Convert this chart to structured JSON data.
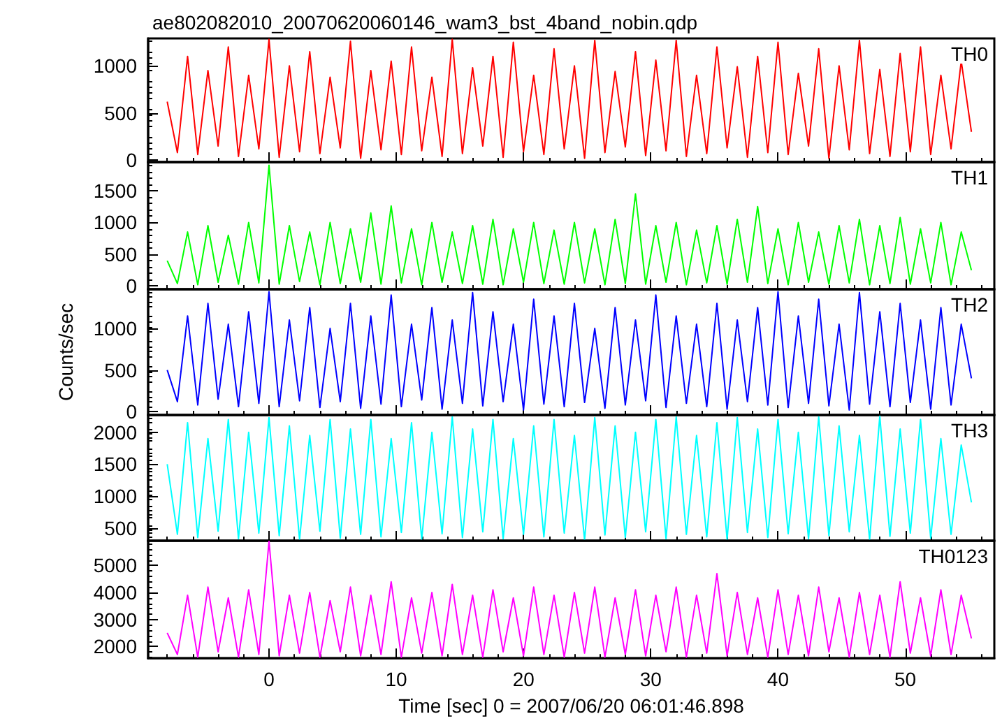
{
  "chart_data": [
    {
      "type": "line",
      "title": "ae802082010_20070620060146_wam3_bst_4band_nobin.qdp",
      "annotations": [
        "TH0"
      ],
      "tick_labels": "y",
      "marker": "none",
      "x": [
        -8,
        -7.2,
        -6.4,
        -5.6,
        -4.8,
        -4,
        -3.2,
        -2.4,
        -1.6,
        -0.8,
        0,
        0.8,
        1.6,
        2.4,
        3.2,
        4,
        4.8,
        5.6,
        6.4,
        7.2,
        8,
        8.8,
        9.6,
        10.4,
        11.2,
        12,
        12.8,
        13.6,
        14.4,
        15.2,
        16,
        16.8,
        17.6,
        18.4,
        19.2,
        20,
        20.8,
        21.6,
        22.4,
        23.2,
        24,
        24.8,
        25.6,
        26.4,
        27.2,
        28,
        28.8,
        29.6,
        30.4,
        31.2,
        32,
        32.8,
        33.6,
        34.4,
        35.2,
        36,
        36.8,
        37.6,
        38.4,
        39.2,
        40,
        40.8,
        41.6,
        42.4,
        43.2,
        44,
        44.8,
        45.6,
        46.4,
        47.2,
        48,
        48.8,
        49.6,
        50.4,
        51.2,
        52,
        52.8,
        53.6,
        54.4,
        55.2
      ],
      "xlim": [
        -9.5,
        57
      ],
      "xticks": [
        0,
        10,
        20,
        30,
        40,
        50
      ],
      "ylim": [
        -20,
        1290
      ],
      "yticks": [
        0,
        500,
        1000
      ],
      "series": [
        {
          "color": "#ff0000",
          "values": [
            620,
            80,
            1100,
            60,
            950,
            150,
            1200,
            40,
            900,
            120,
            1280,
            30,
            1000,
            90,
            1150,
            70,
            880,
            130,
            1260,
            20,
            950,
            110,
            1050,
            60,
            1200,
            100,
            880,
            40,
            1280,
            70,
            980,
            150,
            1100,
            30,
            1250,
            90,
            900,
            60,
            1180,
            120,
            1000,
            20,
            1270,
            80,
            940,
            140,
            1150,
            50,
            1060,
            100,
            1270,
            40,
            900,
            70,
            1200,
            130,
            990,
            30,
            1100,
            80,
            1250,
            60,
            920,
            150,
            1180,
            20,
            1000,
            110,
            1270,
            70,
            960,
            40,
            1130,
            90,
            1200,
            60,
            900,
            120,
            1050,
            300
          ]
        }
      ]
    },
    {
      "type": "line",
      "annotations": [
        "TH1"
      ],
      "tick_labels": "y",
      "marker": "none",
      "x": [
        -8,
        -7.2,
        -6.4,
        -5.6,
        -4.8,
        -4,
        -3.2,
        -2.4,
        -1.6,
        -0.8,
        0,
        0.8,
        1.6,
        2.4,
        3.2,
        4,
        4.8,
        5.6,
        6.4,
        7.2,
        8,
        8.8,
        9.6,
        10.4,
        11.2,
        12,
        12.8,
        13.6,
        14.4,
        15.2,
        16,
        16.8,
        17.6,
        18.4,
        19.2,
        20,
        20.8,
        21.6,
        22.4,
        23.2,
        24,
        24.8,
        25.6,
        26.4,
        27.2,
        28,
        28.8,
        29.6,
        30.4,
        31.2,
        32,
        32.8,
        33.6,
        34.4,
        35.2,
        36,
        36.8,
        37.6,
        38.4,
        39.2,
        40,
        40.8,
        41.6,
        42.4,
        43.2,
        44,
        44.8,
        45.6,
        46.4,
        47.2,
        48,
        48.8,
        49.6,
        50.4,
        51.2,
        52,
        52.8,
        53.6,
        54.4,
        55.2
      ],
      "xlim": [
        -9.5,
        57
      ],
      "xticks": [
        0,
        10,
        20,
        30,
        40,
        50
      ],
      "ylim": [
        -50,
        1950
      ],
      "yticks": [
        0,
        500,
        1000,
        1500
      ],
      "series": [
        {
          "color": "#00ff00",
          "values": [
            400,
            40,
            850,
            20,
            950,
            60,
            800,
            30,
            1000,
            50,
            1900,
            30,
            950,
            70,
            850,
            20,
            1000,
            40,
            900,
            60,
            1150,
            30,
            1260,
            50,
            900,
            20,
            1000,
            60,
            850,
            40,
            950,
            30,
            1050,
            20,
            900,
            60,
            1000,
            40,
            880,
            30,
            1000,
            50,
            900,
            20,
            1050,
            40,
            1450,
            30,
            950,
            60,
            1000,
            20,
            880,
            50,
            950,
            30,
            1050,
            60,
            1250,
            40,
            900,
            20,
            1000,
            60,
            850,
            30,
            950,
            50,
            1050,
            20,
            950,
            40,
            1080,
            30,
            900,
            50,
            1000,
            20,
            850,
            250
          ]
        }
      ]
    },
    {
      "type": "line",
      "ylabel": "Counts/sec",
      "annotations": [
        "TH2"
      ],
      "tick_labels": "y",
      "marker": "none",
      "x": [
        -8,
        -7.2,
        -6.4,
        -5.6,
        -4.8,
        -4,
        -3.2,
        -2.4,
        -1.6,
        -0.8,
        0,
        0.8,
        1.6,
        2.4,
        3.2,
        4,
        4.8,
        5.6,
        6.4,
        7.2,
        8,
        8.8,
        9.6,
        10.4,
        11.2,
        12,
        12.8,
        13.6,
        14.4,
        15.2,
        16,
        16.8,
        17.6,
        18.4,
        19.2,
        20,
        20.8,
        21.6,
        22.4,
        23.2,
        24,
        24.8,
        25.6,
        26.4,
        27.2,
        28,
        28.8,
        29.6,
        30.4,
        31.2,
        32,
        32.8,
        33.6,
        34.4,
        35.2,
        36,
        36.8,
        37.6,
        38.4,
        39.2,
        40,
        40.8,
        41.6,
        42.4,
        43.2,
        44,
        44.8,
        45.6,
        46.4,
        47.2,
        48,
        48.8,
        49.6,
        50.4,
        51.2,
        52,
        52.8,
        53.6,
        54.4,
        55.2
      ],
      "xlim": [
        -9.5,
        57
      ],
      "xticks": [
        0,
        10,
        20,
        30,
        40,
        50
      ],
      "ylim": [
        -40,
        1470
      ],
      "yticks": [
        0,
        500,
        1000
      ],
      "series": [
        {
          "color": "#0000ff",
          "values": [
            500,
            120,
            1150,
            80,
            1300,
            150,
            1050,
            60,
            1200,
            100,
            1440,
            60,
            1100,
            130,
            1250,
            50,
            1000,
            120,
            1300,
            40,
            1150,
            90,
            1400,
            60,
            1050,
            140,
            1250,
            30,
            1100,
            100,
            1430,
            70,
            1200,
            120,
            1050,
            20,
            1350,
            90,
            1150,
            60,
            1300,
            110,
            1000,
            40,
            1250,
            80,
            1100,
            130,
            1400,
            50,
            1150,
            100,
            1050,
            60,
            1300,
            30,
            1100,
            120,
            1250,
            80,
            1440,
            50,
            1150,
            100,
            1350,
            70,
            1050,
            20,
            1430,
            90,
            1200,
            60,
            1300,
            110,
            1100,
            30,
            1250,
            80,
            1050,
            400
          ]
        }
      ]
    },
    {
      "type": "line",
      "annotations": [
        "TH3"
      ],
      "tick_labels": "y",
      "marker": "none",
      "x": [
        -8,
        -7.2,
        -6.4,
        -5.6,
        -4.8,
        -4,
        -3.2,
        -2.4,
        -1.6,
        -0.8,
        0,
        0.8,
        1.6,
        2.4,
        3.2,
        4,
        4.8,
        5.6,
        6.4,
        7.2,
        8,
        8.8,
        9.6,
        10.4,
        11.2,
        12,
        12.8,
        13.6,
        14.4,
        15.2,
        16,
        16.8,
        17.6,
        18.4,
        19.2,
        20,
        20.8,
        21.6,
        22.4,
        23.2,
        24,
        24.8,
        25.6,
        26.4,
        27.2,
        28,
        28.8,
        29.6,
        30.4,
        31.2,
        32,
        32.8,
        33.6,
        34.4,
        35.2,
        36,
        36.8,
        37.6,
        38.4,
        39.2,
        40,
        40.8,
        41.6,
        42.4,
        43.2,
        44,
        44.8,
        45.6,
        46.4,
        47.2,
        48,
        48.8,
        49.6,
        50.4,
        51.2,
        52,
        52.8,
        53.6,
        54.4,
        55.2
      ],
      "xlim": [
        -9.5,
        57
      ],
      "xticks": [
        0,
        10,
        20,
        30,
        40,
        50
      ],
      "ylim": [
        300,
        2270
      ],
      "yticks": [
        500,
        1000,
        1500,
        2000
      ],
      "series": [
        {
          "color": "#00ffff",
          "values": [
            1500,
            400,
            2150,
            350,
            1900,
            450,
            2200,
            330,
            2000,
            420,
            2230,
            380,
            2100,
            320,
            1950,
            450,
            2200,
            340,
            2050,
            400,
            2200,
            360,
            1900,
            430,
            2150,
            320,
            2000,
            410,
            2240,
            350,
            2050,
            440,
            2200,
            330,
            1900,
            400,
            2100,
            360,
            2200,
            420,
            1950,
            310,
            2230,
            390,
            2100,
            350,
            2000,
            440,
            2200,
            330,
            2240,
            400,
            1950,
            360,
            2150,
            320,
            2230,
            430,
            2050,
            350,
            2200,
            410,
            2000,
            330,
            2240,
            380,
            2100,
            440,
            1950,
            320,
            2250,
            370,
            2050,
            420,
            2200,
            340,
            1900,
            400,
            1800,
            900
          ]
        }
      ]
    },
    {
      "type": "line",
      "xlabel": "Time [sec] 0 = 2007/06/20 06:01:46.898",
      "annotations": [
        "TH0123"
      ],
      "marker": "none",
      "x": [
        -8,
        -7.2,
        -6.4,
        -5.6,
        -4.8,
        -4,
        -3.2,
        -2.4,
        -1.6,
        -0.8,
        0,
        0.8,
        1.6,
        2.4,
        3.2,
        4,
        4.8,
        5.6,
        6.4,
        7.2,
        8,
        8.8,
        9.6,
        10.4,
        11.2,
        12,
        12.8,
        13.6,
        14.4,
        15.2,
        16,
        16.8,
        17.6,
        18.4,
        19.2,
        20,
        20.8,
        21.6,
        22.4,
        23.2,
        24,
        24.8,
        25.6,
        26.4,
        27.2,
        28,
        28.8,
        29.6,
        30.4,
        31.2,
        32,
        32.8,
        33.6,
        34.4,
        35.2,
        36,
        36.8,
        37.6,
        38.4,
        39.2,
        40,
        40.8,
        41.6,
        42.4,
        43.2,
        44,
        44.8,
        45.6,
        46.4,
        47.2,
        48,
        48.8,
        49.6,
        50.4,
        51.2,
        52,
        52.8,
        53.6,
        54.4,
        55.2
      ],
      "xlim": [
        -9.5,
        57
      ],
      "xticks": [
        0,
        10,
        20,
        30,
        40,
        50
      ],
      "ylim": [
        1560,
        5920
      ],
      "yticks": [
        2000,
        3000,
        4000,
        5000
      ],
      "series": [
        {
          "color": "#ff00ff",
          "values": [
            2500,
            1700,
            3900,
            1600,
            4200,
            1800,
            3800,
            1600,
            4100,
            1700,
            5900,
            1650,
            3900,
            1750,
            4000,
            1600,
            3700,
            1800,
            4200,
            1650,
            3900,
            1700,
            4400,
            1600,
            3800,
            1750,
            4000,
            1650,
            4300,
            1700,
            3900,
            1600,
            4100,
            1800,
            3800,
            1650,
            4200,
            1700,
            3900,
            1600,
            4000,
            1750,
            4200,
            1600,
            3800,
            1700,
            4100,
            1650,
            3900,
            1800,
            4200,
            1600,
            3900,
            1750,
            4700,
            1650,
            4000,
            1700,
            3800,
            1600,
            4100,
            1700,
            3900,
            1650,
            4200,
            1800,
            3800,
            1600,
            4000,
            1700,
            3900,
            1600,
            4400,
            1750,
            3800,
            1650,
            4100,
            1700,
            3900,
            2300
          ]
        }
      ]
    }
  ]
}
